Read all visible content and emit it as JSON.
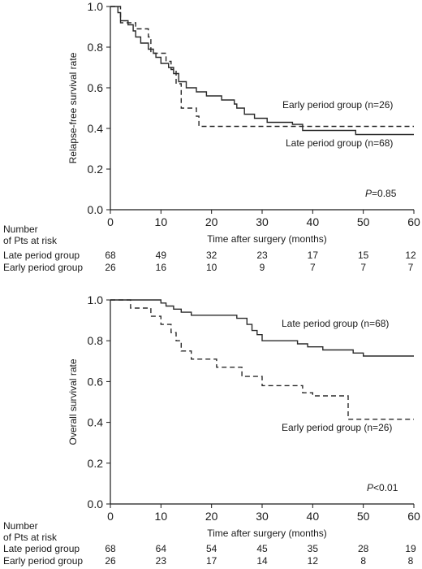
{
  "chart_data": [
    {
      "type": "line",
      "subtype": "kaplan-meier step",
      "ylabel": "Relapse-free survival rate",
      "xlabel": "Time after surgery (months)",
      "xlim": [
        0,
        60
      ],
      "ylim": [
        0,
        1.0
      ],
      "xticks": [
        "0",
        "10",
        "20",
        "30",
        "40",
        "50",
        "60"
      ],
      "yticks": [
        "0.0",
        "0.2",
        "0.4",
        "0.6",
        "0.8",
        "1.0"
      ],
      "pvalue_prefix": "P",
      "pvalue_text": "=0.85",
      "series": [
        {
          "name": "Late period group (n=68)",
          "line": "solid",
          "steps": [
            [
              0,
              1.0
            ],
            [
              1.5,
              0.97
            ],
            [
              2,
              0.93
            ],
            [
              3.5,
              0.91
            ],
            [
              4.5,
              0.88
            ],
            [
              5,
              0.85
            ],
            [
              6,
              0.82
            ],
            [
              7.5,
              0.79
            ],
            [
              8.5,
              0.77
            ],
            [
              9,
              0.75
            ],
            [
              10,
              0.72
            ],
            [
              11.5,
              0.7
            ],
            [
              12.5,
              0.67
            ],
            [
              13.5,
              0.63
            ],
            [
              15,
              0.6
            ],
            [
              17,
              0.58
            ],
            [
              19,
              0.56
            ],
            [
              22,
              0.54
            ],
            [
              24.5,
              0.52
            ],
            [
              25,
              0.5
            ],
            [
              26.5,
              0.47
            ],
            [
              28.5,
              0.45
            ],
            [
              31,
              0.43
            ],
            [
              36,
              0.42
            ],
            [
              38,
              0.39
            ],
            [
              48.5,
              0.37
            ],
            [
              60,
              0.37
            ]
          ]
        },
        {
          "name": "Early period group (n=26)",
          "line": "dashed",
          "steps": [
            [
              0,
              1.0
            ],
            [
              2,
              0.92
            ],
            [
              5,
              0.89
            ],
            [
              7.5,
              0.85
            ],
            [
              8,
              0.77
            ],
            [
              11,
              0.73
            ],
            [
              12,
              0.69
            ],
            [
              13,
              0.62
            ],
            [
              14,
              0.5
            ],
            [
              17,
              0.46
            ],
            [
              17.5,
              0.41
            ],
            [
              60,
              0.41
            ]
          ]
        }
      ],
      "risk_table": {
        "header_line1": "Number",
        "header_line2": "of Pts at risk",
        "rows": [
          {
            "label": "Late period group",
            "values": [
              "68",
              "49",
              "32",
              "23",
              "17",
              "15",
              "12"
            ]
          },
          {
            "label": "Early period group",
            "values": [
              "26",
              "16",
              "10",
              "9",
              "7",
              "7",
              "7"
            ]
          }
        ]
      }
    },
    {
      "type": "line",
      "subtype": "kaplan-meier step",
      "ylabel": "Overall survival rate",
      "xlabel": "Time after surgery (months)",
      "xlim": [
        0,
        60
      ],
      "ylim": [
        0,
        1.0
      ],
      "xticks": [
        "0",
        "10",
        "20",
        "30",
        "40",
        "50",
        "60"
      ],
      "yticks": [
        "0.0",
        "0.2",
        "0.4",
        "0.6",
        "0.8",
        "1.0"
      ],
      "pvalue_prefix": "P",
      "pvalue_text": "<0.01",
      "series": [
        {
          "name": "Late period group (n=68)",
          "line": "solid",
          "steps": [
            [
              0,
              1.0
            ],
            [
              10,
              0.985
            ],
            [
              11,
              0.97
            ],
            [
              12.5,
              0.955
            ],
            [
              14,
              0.94
            ],
            [
              16,
              0.925
            ],
            [
              25,
              0.91
            ],
            [
              27,
              0.88
            ],
            [
              28,
              0.85
            ],
            [
              29,
              0.83
            ],
            [
              30,
              0.8
            ],
            [
              37,
              0.785
            ],
            [
              39,
              0.77
            ],
            [
              42,
              0.755
            ],
            [
              48,
              0.74
            ],
            [
              50,
              0.725
            ],
            [
              60,
              0.725
            ]
          ]
        },
        {
          "name": "Early period group (n=26)",
          "line": "dashed",
          "steps": [
            [
              0,
              1.0
            ],
            [
              4,
              0.96
            ],
            [
              8,
              0.92
            ],
            [
              10,
              0.88
            ],
            [
              12,
              0.84
            ],
            [
              13,
              0.8
            ],
            [
              14,
              0.75
            ],
            [
              16,
              0.71
            ],
            [
              21,
              0.67
            ],
            [
              26,
              0.625
            ],
            [
              30,
              0.58
            ],
            [
              38,
              0.545
            ],
            [
              40,
              0.53
            ],
            [
              47,
              0.415
            ],
            [
              60,
              0.415
            ]
          ]
        }
      ],
      "risk_table": {
        "header_line1": "Number",
        "header_line2": "of Pts at risk",
        "rows": [
          {
            "label": "Late period group",
            "values": [
              "68",
              "64",
              "54",
              "45",
              "35",
              "28",
              "19"
            ]
          },
          {
            "label": "Early period group",
            "values": [
              "26",
              "23",
              "17",
              "14",
              "12",
              "8",
              "8"
            ]
          }
        ]
      }
    }
  ]
}
